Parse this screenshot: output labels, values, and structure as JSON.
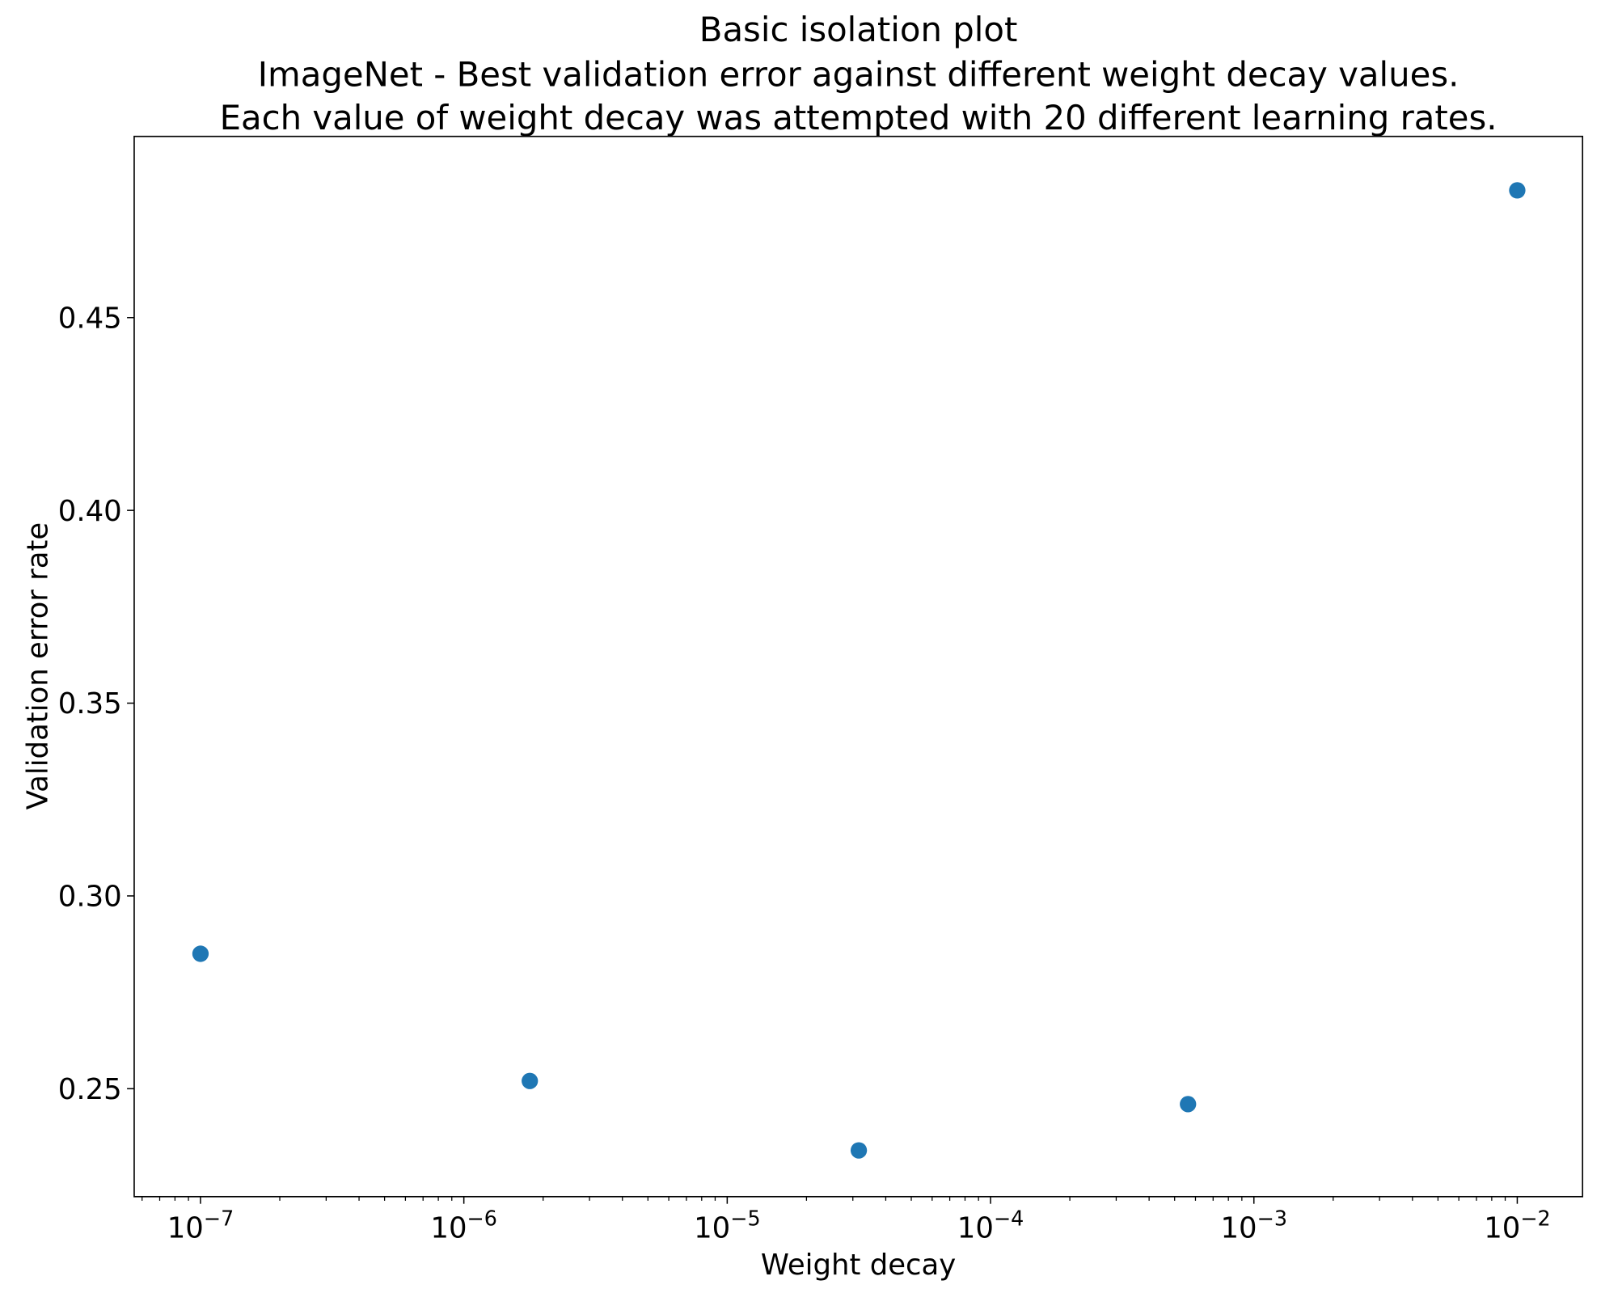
{
  "chart_data": {
    "type": "scatter",
    "title": "Basic isolation plot",
    "subtitle_lines": [
      "ImageNet - Best validation error against different weight decay values.",
      "Each value of weight decay was attempted with 20 different learning rates."
    ],
    "xlabel": "Weight decay",
    "ylabel": "Validation error rate",
    "xscale": "log",
    "xlim": [
      5.6e-08,
      0.0177
    ],
    "ylim": [
      0.222,
      0.497
    ],
    "x_ticks": [
      1e-07,
      1e-06,
      1e-05,
      0.0001,
      0.001,
      0.01
    ],
    "x_tick_labels": [
      {
        "base": "10",
        "exp": "−7"
      },
      {
        "base": "10",
        "exp": "−6"
      },
      {
        "base": "10",
        "exp": "−5"
      },
      {
        "base": "10",
        "exp": "−4"
      },
      {
        "base": "10",
        "exp": "−3"
      },
      {
        "base": "10",
        "exp": "−2"
      }
    ],
    "y_ticks": [
      0.25,
      0.3,
      0.35,
      0.4,
      0.45
    ],
    "y_tick_labels": [
      "0.25",
      "0.30",
      "0.35",
      "0.40",
      "0.45"
    ],
    "grid": false,
    "color": "#1f77b4",
    "x": [
      1e-07,
      1.78e-06,
      3.16e-05,
      0.000562,
      0.01
    ],
    "y": [
      0.285,
      0.252,
      0.234,
      0.246,
      0.483
    ]
  }
}
